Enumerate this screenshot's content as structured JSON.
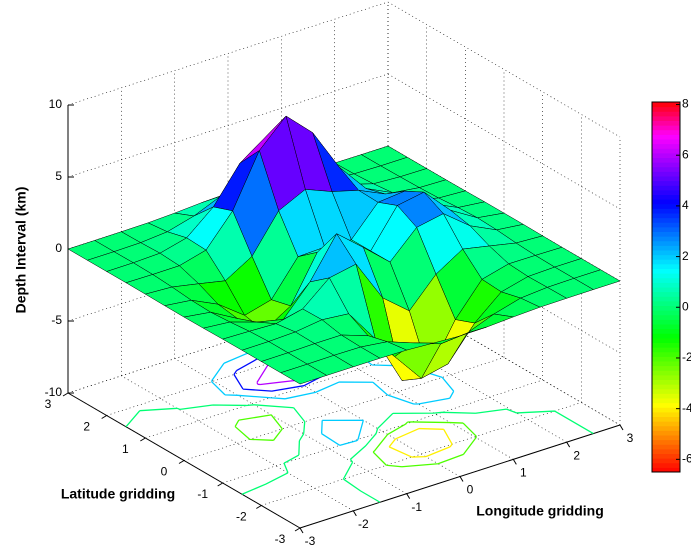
{
  "chart_data": {
    "type": "surface",
    "xlabel": "Longitude gridding",
    "ylabel": "Latitude gridding",
    "zlabel": "Depth Interval (km)",
    "x": [
      -3,
      -2.5,
      -2,
      -1.5,
      -1,
      -0.5,
      0,
      0.5,
      1,
      1.5,
      2,
      2.5,
      3
    ],
    "y": [
      -3,
      -2.5,
      -2,
      -1.5,
      -1,
      -0.5,
      0,
      0.5,
      1,
      1.5,
      2,
      2.5,
      3
    ],
    "z": [
      [
        0,
        0,
        0,
        0,
        -0.03,
        -0.14,
        -0.24,
        -0.22,
        -0.11,
        -0.03,
        -0.01,
        0,
        0
      ],
      [
        0,
        0,
        0.02,
        0,
        -0.23,
        -0.91,
        -1.57,
        -1.41,
        -0.69,
        -0.18,
        -0.03,
        0,
        0
      ],
      [
        0,
        0.01,
        0.05,
        0.05,
        -0.59,
        -2.64,
        -4.75,
        -4.34,
        -2.1,
        -0.53,
        -0.06,
        0,
        0
      ],
      [
        0,
        0.01,
        0.08,
        0.33,
        0.15,
        -2.19,
        -5.68,
        -5.76,
        -2.64,
        -0.44,
        0.04,
        0.03,
        0
      ],
      [
        -0.01,
        -0.06,
        -0.13,
        0.3,
        1.86,
        2.22,
        -0.72,
        -2.22,
        -0.27,
        0.88,
        0.5,
        0.11,
        0.01
      ],
      [
        -0.03,
        -0.2,
        -0.8,
        -1.21,
        0.8,
        3.55,
        2,
        0.39,
        2.2,
        2.56,
        1.12,
        0.24,
        0.03
      ],
      [
        -0.04,
        -0.3,
        -1.33,
        -2.77,
        -1.65,
        1.48,
        0.98,
        0.38,
        2.94,
        3.27,
        1.41,
        0.3,
        0.03
      ],
      [
        -0.03,
        -0.25,
        -1.12,
        -2.49,
        -2,
        0.39,
        0.46,
        0.38,
        2.38,
        2.56,
        1.09,
        0.23,
        0.03
      ],
      [
        -0.01,
        -0.11,
        -0.48,
        -0.87,
        0.23,
        2.8,
        3.69,
        2.94,
        2.43,
        1.58,
        0.58,
        0.11,
        0.01
      ],
      [
        0,
        -0.02,
        -0.01,
        0.48,
        2.61,
        6.2,
        8,
        6.25,
        3.25,
        1.18,
        0.29,
        0.05,
        0
      ],
      [
        0,
        0.01,
        0.08,
        0.55,
        2.1,
        4.55,
        5.85,
        4.56,
        2.21,
        0.68,
        0.13,
        0.02,
        0
      ],
      [
        0,
        0,
        0.03,
        0.19,
        0.69,
        1.47,
        1.89,
        1.47,
        0.7,
        0.21,
        0.04,
        0,
        0
      ],
      [
        0,
        0,
        0.01,
        0.03,
        0.11,
        0.23,
        0.3,
        0.23,
        0.11,
        0.03,
        0.01,
        0,
        0
      ]
    ],
    "xlim": [
      -3,
      3
    ],
    "xticks": [
      -3,
      -2,
      -1,
      0,
      1,
      2,
      3
    ],
    "ylim": [
      -3,
      3
    ],
    "yticks": [
      -3,
      -2,
      -1,
      0,
      1,
      2,
      3
    ],
    "zlim": [
      -10,
      10
    ],
    "zticks": [
      -10,
      -5,
      0,
      5,
      10
    ],
    "contour_levels": [
      -6,
      -4,
      -2,
      0,
      2,
      4,
      6
    ],
    "clim": [
      -6.5,
      8.1
    ],
    "cticks": [
      -6,
      -4,
      -2,
      0,
      2,
      4,
      6,
      8
    ],
    "colormap": [
      "#ff0000",
      "#ff8000",
      "#ffff00",
      "#80ff00",
      "#00ff00",
      "#00ff80",
      "#00ffff",
      "#0080ff",
      "#0000ff",
      "#8000ff",
      "#ff00ff",
      "#ff0000"
    ],
    "grid": true,
    "edge_color": "#000000"
  }
}
